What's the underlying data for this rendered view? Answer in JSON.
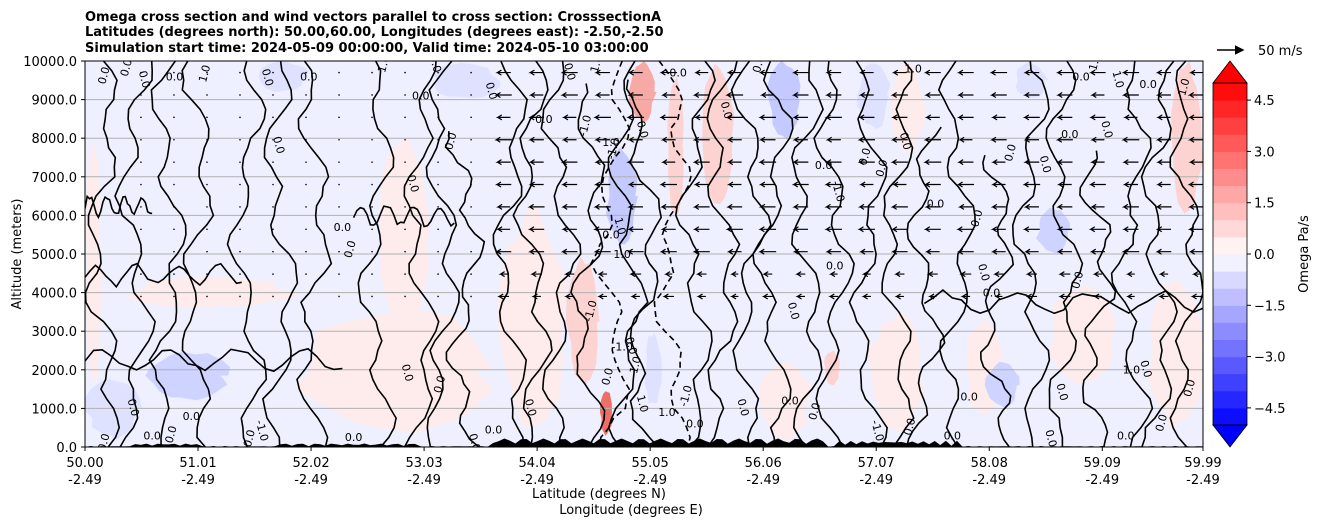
{
  "chart_data": {
    "type": "contour-cross-section",
    "title_lines": [
      "Omega cross section and wind vectors parallel to cross section: CrosssectionA",
      "Latitudes (degrees north): 50.00,60.00, Longitudes (degrees east): -2.50,-2.50",
      "Simulation start time: 2024-05-09 00:00:00, Valid time: 2024-05-10 03:00:00"
    ],
    "ylabel": "Altitude (meters)",
    "xlabel_line1": "Latitude (degrees N)",
    "xlabel_line2": "Longitude (degrees E)",
    "xlim": [
      50.0,
      59.99
    ],
    "ylim": [
      0,
      10000
    ],
    "yticks": [
      "0.0",
      "1000.0",
      "2000.0",
      "3000.0",
      "4000.0",
      "5000.0",
      "6000.0",
      "7000.0",
      "8000.0",
      "9000.0",
      "10000.0"
    ],
    "xticks": [
      {
        "lat": "50.00",
        "lon": "-2.49"
      },
      {
        "lat": "51.01",
        "lon": "-2.49"
      },
      {
        "lat": "52.02",
        "lon": "-2.49"
      },
      {
        "lat": "53.03",
        "lon": "-2.49"
      },
      {
        "lat": "54.04",
        "lon": "-2.49"
      },
      {
        "lat": "55.05",
        "lon": "-2.49"
      },
      {
        "lat": "56.06",
        "lon": "-2.49"
      },
      {
        "lat": "57.07",
        "lon": "-2.49"
      },
      {
        "lat": "58.08",
        "lon": "-2.49"
      },
      {
        "lat": "59.09",
        "lon": "-2.49"
      },
      {
        "lat": "59.99",
        "lon": "-2.49"
      }
    ],
    "grid": "horizontal",
    "colorbar": {
      "label": "Omega Pa/s",
      "range": [
        -5.0,
        5.0
      ],
      "ticks": [
        "4.5",
        "3.0",
        "1.5",
        "0.0",
        "−1.5",
        "−3.0",
        "−4.5"
      ],
      "extend": "both",
      "cmap": "bwr"
    },
    "quiver_key": {
      "label": "50 m/s",
      "magnitude": 50
    },
    "contour_levels": [
      -1.0,
      0.0,
      1.0
    ],
    "contour_labels": [
      {
        "text": "0.0",
        "lat": 50.2,
        "alt": 9600
      },
      {
        "text": "0.0",
        "lat": 50.5,
        "alt": 9500
      },
      {
        "text": "0.0",
        "lat": 50.8,
        "alt": 9500
      },
      {
        "text": "1.0",
        "lat": 51.1,
        "alt": 9650
      },
      {
        "text": "0.0",
        "lat": 51.6,
        "alt": 9550
      },
      {
        "text": "0.0",
        "lat": 52.0,
        "alt": 9500
      },
      {
        "text": "1.0",
        "lat": 52.7,
        "alt": 9900
      },
      {
        "text": "0.0",
        "lat": 53.1,
        "alt": 9900
      },
      {
        "text": "0.0",
        "lat": 55.3,
        "alt": 9600
      },
      {
        "text": "1.0",
        "lat": 54.6,
        "alt": 9900
      },
      {
        "text": "0.0",
        "lat": 54.95,
        "alt": 8200
      },
      {
        "text": "1.0",
        "lat": 54.7,
        "alt": 7800
      },
      {
        "text": "0.0",
        "lat": 56.05,
        "alt": 9900
      },
      {
        "text": "-1.0",
        "lat": 56.7,
        "alt": 6600
      },
      {
        "text": "1.0",
        "lat": 57.4,
        "alt": 9700
      },
      {
        "text": "0.0",
        "lat": 57.0,
        "alt": 7500
      },
      {
        "text": "0.0",
        "lat": 57.3,
        "alt": 7900
      },
      {
        "text": "0.0",
        "lat": 57.6,
        "alt": 6200
      },
      {
        "text": "-1.0",
        "lat": 59.05,
        "alt": 9900
      },
      {
        "text": "1.0",
        "lat": 59.2,
        "alt": 9500
      },
      {
        "text": "0.0",
        "lat": 58.9,
        "alt": 9500
      },
      {
        "text": "0.0",
        "lat": 50.4,
        "alt": 9800
      },
      {
        "text": "0.0",
        "lat": 51.7,
        "alt": 7800
      },
      {
        "text": "0.0",
        "lat": 52.3,
        "alt": 5600
      },
      {
        "text": "0.0",
        "lat": 52.4,
        "alt": 5100
      },
      {
        "text": "0.0",
        "lat": 52.9,
        "alt": 6800
      },
      {
        "text": "0.0",
        "lat": 53.0,
        "alt": 9000
      },
      {
        "text": "0.0",
        "lat": 53.3,
        "alt": 7900
      },
      {
        "text": "0.0",
        "lat": 53.6,
        "alt": 9200
      },
      {
        "text": "0.0",
        "lat": 54.1,
        "alt": 8400
      },
      {
        "text": "-1.0",
        "lat": 54.5,
        "alt": 8300
      },
      {
        "text": "0.0",
        "lat": 54.3,
        "alt": 9700
      },
      {
        "text": "0.0",
        "lat": 54.7,
        "alt": 5400
      },
      {
        "text": "-1.0",
        "lat": 54.75,
        "alt": 7700
      },
      {
        "text": "1.0",
        "lat": 54.75,
        "alt": 5700
      },
      {
        "text": "1.0",
        "lat": 54.8,
        "alt": 4900
      },
      {
        "text": "-1.0",
        "lat": 54.55,
        "alt": 3500
      },
      {
        "text": "0.0",
        "lat": 54.85,
        "alt": 2600
      },
      {
        "text": "-1.0",
        "lat": 54.8,
        "alt": 2500
      },
      {
        "text": "1.0",
        "lat": 54.95,
        "alt": 2100
      },
      {
        "text": "1.0",
        "lat": 54.95,
        "alt": 1100
      },
      {
        "text": "1.0",
        "lat": 55.2,
        "alt": 800
      },
      {
        "text": "-1.0",
        "lat": 55.4,
        "alt": 1300
      },
      {
        "text": "0.0",
        "lat": 55.7,
        "alt": 8700
      },
      {
        "text": "0.0",
        "lat": 56.6,
        "alt": 7200
      },
      {
        "text": "0.0",
        "lat": 57.15,
        "alt": 7200
      },
      {
        "text": "0.0",
        "lat": 56.3,
        "alt": 3500
      },
      {
        "text": "0.0",
        "lat": 56.7,
        "alt": 4600
      },
      {
        "text": "0.0",
        "lat": 58.0,
        "alt": 5900
      },
      {
        "text": "0.0",
        "lat": 58.0,
        "alt": 4500
      },
      {
        "text": "0.0",
        "lat": 58.1,
        "alt": 3900
      },
      {
        "text": "0.0",
        "lat": 58.3,
        "alt": 7600
      },
      {
        "text": "0.0",
        "lat": 58.55,
        "alt": 7300
      },
      {
        "text": "0.0",
        "lat": 58.8,
        "alt": 8000
      },
      {
        "text": "0.0",
        "lat": 58.9,
        "alt": 4300
      },
      {
        "text": "0.0",
        "lat": 59.1,
        "alt": 8200
      },
      {
        "text": "0.0",
        "lat": 59.5,
        "alt": 9300
      },
      {
        "text": "1.0",
        "lat": 59.85,
        "alt": 9300
      },
      {
        "text": "0.0",
        "lat": 59.45,
        "alt": 2000
      },
      {
        "text": "1.0",
        "lat": 59.35,
        "alt": 1900
      },
      {
        "text": "0.0",
        "lat": 59.9,
        "alt": 1500
      },
      {
        "text": "0.0",
        "lat": 58.7,
        "alt": 1400
      },
      {
        "text": "0.0",
        "lat": 57.9,
        "alt": 1200
      },
      {
        "text": "0.0",
        "lat": 56.55,
        "alt": 900
      },
      {
        "text": "0.0",
        "lat": 55.85,
        "alt": 1000
      },
      {
        "text": "0.0",
        "lat": 56.3,
        "alt": 1100
      },
      {
        "text": "0.0",
        "lat": 54.7,
        "alt": 1800
      },
      {
        "text": "0.0",
        "lat": 53.95,
        "alt": 1000
      },
      {
        "text": "0.0",
        "lat": 53.65,
        "alt": 350
      },
      {
        "text": "0.0",
        "lat": 53.2,
        "alt": 1600
      },
      {
        "text": "0.0",
        "lat": 52.85,
        "alt": 1900
      },
      {
        "text": "0.0",
        "lat": 52.4,
        "alt": 150
      },
      {
        "text": "0.0",
        "lat": 51.5,
        "alt": 200
      },
      {
        "text": "-1.0",
        "lat": 51.55,
        "alt": 400
      },
      {
        "text": "0.0",
        "lat": 50.95,
        "alt": 700
      },
      {
        "text": "0.0",
        "lat": 50.8,
        "alt": 300
      },
      {
        "text": "0.0",
        "lat": 50.4,
        "alt": 1000
      },
      {
        "text": "0.0",
        "lat": 50.6,
        "alt": 200
      },
      {
        "text": "0.0",
        "lat": 50.2,
        "alt": 100
      },
      {
        "text": "0.0",
        "lat": 53.45,
        "alt": 100
      },
      {
        "text": "0.0",
        "lat": 55.45,
        "alt": 500
      },
      {
        "text": "0.0",
        "lat": 57.4,
        "alt": 500
      },
      {
        "text": "0.0",
        "lat": 58.6,
        "alt": 200
      },
      {
        "text": "0.0",
        "lat": 59.3,
        "alt": 200
      },
      {
        "text": "0.0",
        "lat": 59.65,
        "alt": 600
      },
      {
        "text": "-1.0",
        "lat": 57.05,
        "alt": 400
      },
      {
        "text": "0.0",
        "lat": 57.75,
        "alt": 200
      }
    ]
  }
}
